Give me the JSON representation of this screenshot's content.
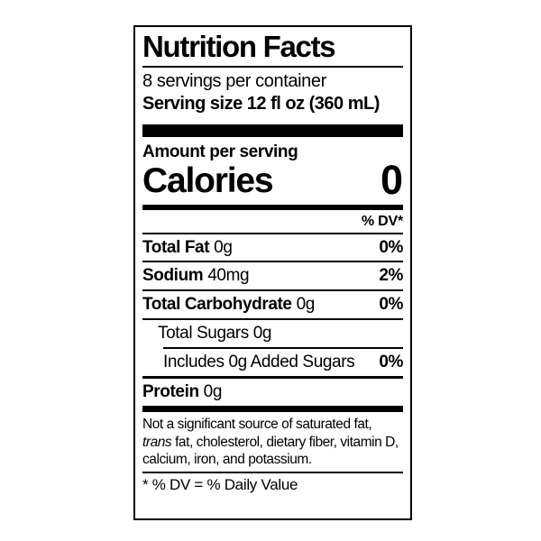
{
  "colors": {
    "ink": "#000000",
    "background": "#ffffff"
  },
  "nutrition_label": {
    "title": "Nutrition Facts",
    "servings_per_container": "8 servings per container",
    "serving_size": "Serving size 12 fl oz (360 mL)",
    "amount_per_serving": "Amount per serving",
    "calories_label": "Calories",
    "calories_value": "0",
    "daily_value_header": "% DV*",
    "nutrients": [
      {
        "name": "Total Fat",
        "amount": "0g",
        "dv": "0%"
      },
      {
        "name": "Sodium",
        "amount": "40mg",
        "dv": "2%"
      },
      {
        "name": "Total Carbohydrate",
        "amount": "0g",
        "dv": "0%"
      },
      {
        "name": "Total Sugars 0g",
        "amount": "",
        "dv": ""
      },
      {
        "name": "Includes 0g Added Sugars",
        "amount": "",
        "dv": "0%"
      },
      {
        "name": "Protein",
        "amount": "0g",
        "dv": ""
      }
    ],
    "footnote": {
      "part1": "Not a significant source of saturated fat, ",
      "italic_word": "trans",
      "part2": " fat, cholesterol, dietary fiber, vitamin D, calcium, iron, and potassium."
    },
    "dv_definition": "* % DV = % Daily Value"
  }
}
